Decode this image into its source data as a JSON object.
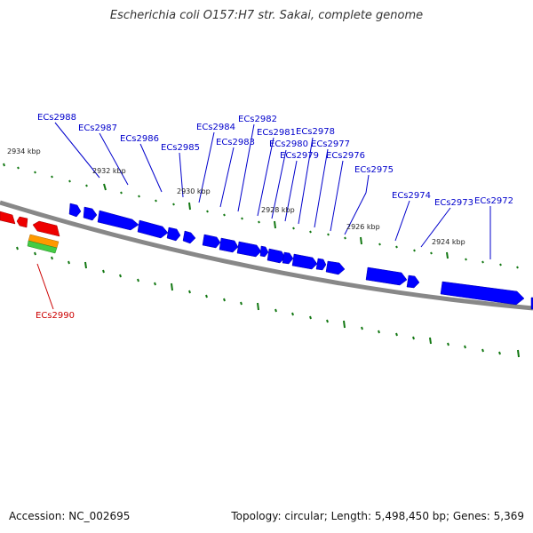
{
  "title": "Escherichia coli O157:H7 str. Sakai, complete genome",
  "footer": {
    "accession": "Accession: NC_002695",
    "summary": "Topology: circular; Length: 5,498,450 bp; Genes: 5,369"
  },
  "colors": {
    "forward_gene": "#0000ff",
    "reverse_gene": "#ee0000",
    "backbone": "#888888",
    "ticks": "#117711",
    "label_blue": "#0000cc",
    "label_red": "#cc0000"
  },
  "kbp_labels": [
    "2934 kbp",
    "2932 kbp",
    "2930 kbp",
    "2928 kbp",
    "2926 kbp",
    "2924 kbp"
  ],
  "gene_labels": [
    "ECs2988",
    "ECs2987",
    "ECs2986",
    "ECs2985",
    "ECs2984",
    "ECs2983",
    "ECs2982",
    "ECs2981",
    "ECs2980",
    "ECs2979",
    "ECs2978",
    "ECs2977",
    "ECs2976",
    "ECs2975",
    "ECs2974",
    "ECs2973",
    "ECs2972"
  ],
  "red_gene_label": "ECs2990"
}
